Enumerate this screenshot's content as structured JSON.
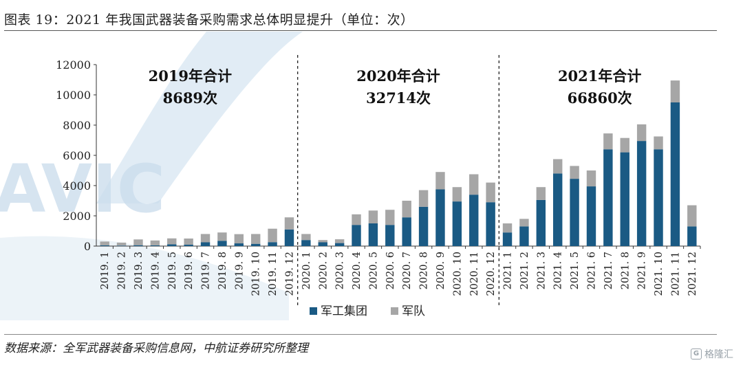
{
  "header": {
    "title": "图表 19：2021 年我国武器装备采购需求总体明显提升（单位：次）"
  },
  "footer": {
    "source": "数据来源：全军武器装备采购信息网，中航证券研究所整理",
    "stamp": "格隆汇"
  },
  "watermark": {
    "text": "AVIC"
  },
  "colors": {
    "military_group": "#1a5a84",
    "army": "#a6a6a6",
    "watermark": "#c9dcec"
  },
  "chart_data": {
    "type": "bar",
    "stacked": true,
    "title": "",
    "xlabel": "",
    "ylabel": "",
    "ylim": [
      0,
      12000
    ],
    "yticks": [
      0,
      2000,
      4000,
      6000,
      8000,
      10000,
      12000
    ],
    "grid": false,
    "legend_position": "bottom-center",
    "categories": [
      "2019. 1",
      "2019. 2",
      "2019. 3",
      "2019. 4",
      "2019. 5",
      "2019. 6",
      "2019. 7",
      "2019. 8",
      "2019. 9",
      "2019. 10",
      "2019. 11",
      "2019. 12",
      "2020. 1",
      "2020. 2",
      "2020. 3",
      "2020. 4",
      "2020. 5",
      "2020. 6",
      "2020. 7",
      "2020. 8",
      "2020. 9",
      "2020. 10",
      "2020. 11",
      "2020. 12",
      "2021. 1",
      "2021. 2",
      "2021. 3",
      "2021. 4",
      "2021. 5",
      "2021. 6",
      "2021. 7",
      "2021. 8",
      "2021. 9",
      "2021. 10",
      "2021. 11",
      "2021. 12"
    ],
    "series": [
      {
        "name": "军工集团",
        "color": "#1a5a84",
        "values": [
          50,
          30,
          60,
          50,
          120,
          100,
          250,
          350,
          180,
          150,
          260,
          1100,
          400,
          250,
          200,
          1400,
          1500,
          1400,
          1900,
          2600,
          3750,
          2950,
          3400,
          2900,
          900,
          1300,
          3050,
          4800,
          4450,
          3950,
          6400,
          6200,
          6950,
          6400,
          9500,
          1300
        ]
      },
      {
        "name": "军队",
        "color": "#a6a6a6",
        "values": [
          250,
          200,
          380,
          320,
          390,
          400,
          550,
          550,
          610,
          650,
          890,
          800,
          400,
          150,
          250,
          700,
          850,
          1000,
          1100,
          1100,
          1150,
          950,
          1350,
          1300,
          600,
          500,
          850,
          950,
          850,
          1050,
          1050,
          950,
          1100,
          850,
          1450,
          1400
        ]
      }
    ],
    "period_dividers_after": [
      "2019. 12",
      "2020. 12"
    ],
    "annotations": [
      {
        "year": "2019年合计",
        "total": "8689次"
      },
      {
        "year": "2020年合计",
        "total": "32714次"
      },
      {
        "year": "2021年合计",
        "total": "66860次"
      }
    ]
  }
}
